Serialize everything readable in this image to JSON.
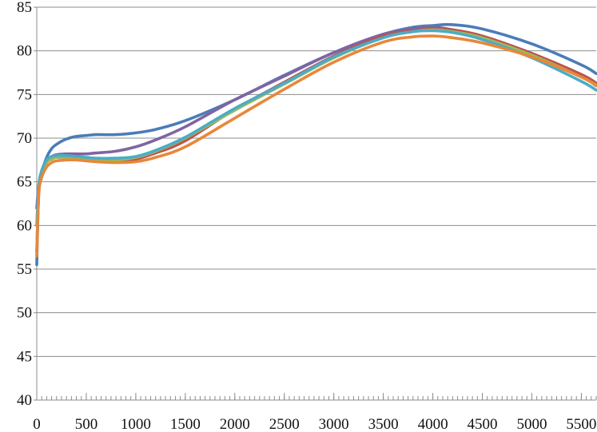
{
  "chart_data": {
    "type": "line",
    "title": "",
    "xlabel": "",
    "ylabel": "",
    "xlim": [
      0,
      5650
    ],
    "ylim": [
      40,
      85
    ],
    "x_ticks": [
      0,
      500,
      1000,
      1500,
      2000,
      2500,
      3000,
      3500,
      4000,
      4500,
      5000,
      5500
    ],
    "y_ticks": [
      40,
      45,
      50,
      55,
      60,
      65,
      70,
      75,
      80,
      85
    ],
    "grid": "horizontal",
    "legend": "none",
    "series": [
      {
        "color": "#4a7db8",
        "x": [
          0,
          20,
          50,
          100,
          150,
          200,
          300,
          400,
          500,
          600,
          800,
          1000,
          1200,
          1500,
          2000,
          2500,
          3000,
          3500,
          3800,
          4000,
          4200,
          4500,
          5000,
          5500,
          5650
        ],
        "y": [
          55.5,
          63.8,
          66,
          67.8,
          68.8,
          69.3,
          69.9,
          70.2,
          70.3,
          70.4,
          70.4,
          70.6,
          71,
          72,
          74.4,
          77.2,
          79.8,
          81.9,
          82.7,
          82.9,
          83,
          82.5,
          80.8,
          78.4,
          77.4
        ]
      },
      {
        "color": "#8064a2",
        "x": [
          0,
          20,
          50,
          100,
          150,
          200,
          300,
          400,
          500,
          600,
          800,
          1000,
          1200,
          1500,
          2000,
          2500,
          3000,
          3500,
          3800,
          4000,
          4200,
          4500,
          5000,
          5500,
          5650
        ],
        "y": [
          62,
          64.5,
          66.2,
          67.4,
          67.9,
          68.1,
          68.2,
          68.2,
          68.2,
          68.3,
          68.5,
          69,
          69.8,
          71.3,
          74.4,
          77.1,
          79.8,
          81.9,
          82.5,
          82.7,
          82.4,
          81.6,
          79.7,
          77.2,
          76.2
        ]
      },
      {
        "color": "#c0504d",
        "x": [
          0,
          20,
          50,
          100,
          150,
          200,
          300,
          400,
          500,
          600,
          800,
          1000,
          1200,
          1500,
          2000,
          2500,
          3000,
          3500,
          3800,
          4000,
          4200,
          4500,
          5000,
          5500,
          5650
        ],
        "y": [
          57,
          63.8,
          65.8,
          67.2,
          67.6,
          67.8,
          67.8,
          67.8,
          67.6,
          67.5,
          67.4,
          67.6,
          68.3,
          69.7,
          73.3,
          76.4,
          79.4,
          81.7,
          82.3,
          82.5,
          82.4,
          81.7,
          79.7,
          77.3,
          76.3
        ]
      },
      {
        "color": "#9bbb59",
        "x": [
          0,
          20,
          50,
          100,
          150,
          200,
          300,
          400,
          500,
          600,
          800,
          1000,
          1200,
          1500,
          2000,
          2500,
          3000,
          3500,
          3800,
          4000,
          4200,
          4500,
          5000,
          5500,
          5650
        ],
        "y": [
          57,
          63.8,
          65.8,
          67.2,
          67.6,
          67.8,
          67.8,
          67.8,
          67.6,
          67.5,
          67.5,
          67.8,
          68.5,
          70,
          73.2,
          76.2,
          79.2,
          81.5,
          82.2,
          82.4,
          82.2,
          81.5,
          79.5,
          77,
          76.1
        ]
      },
      {
        "color": "#4bacc6",
        "x": [
          0,
          20,
          50,
          100,
          150,
          200,
          300,
          400,
          500,
          600,
          800,
          1000,
          1200,
          1500,
          2000,
          2500,
          3000,
          3500,
          3800,
          4000,
          4200,
          4500,
          5000,
          5500,
          5650
        ],
        "y": [
          60,
          64.5,
          66.3,
          67.5,
          67.9,
          68,
          68,
          67.9,
          67.8,
          67.7,
          67.7,
          67.9,
          68.6,
          70.1,
          73.4,
          76.3,
          79.3,
          81.5,
          82.2,
          82.3,
          82.1,
          81.3,
          79.2,
          76.5,
          75.5
        ]
      },
      {
        "color": "#e8873a",
        "x": [
          0,
          20,
          50,
          100,
          150,
          200,
          300,
          400,
          500,
          600,
          800,
          1000,
          1200,
          1500,
          2000,
          2500,
          3000,
          3500,
          3800,
          4000,
          4200,
          4500,
          5000,
          5500,
          5650
        ],
        "y": [
          56.5,
          63.5,
          65.5,
          66.7,
          67.2,
          67.4,
          67.5,
          67.5,
          67.4,
          67.3,
          67.2,
          67.3,
          67.8,
          69,
          72.3,
          75.6,
          78.7,
          81,
          81.6,
          81.7,
          81.5,
          80.9,
          79.3,
          77,
          76
        ]
      }
    ]
  }
}
